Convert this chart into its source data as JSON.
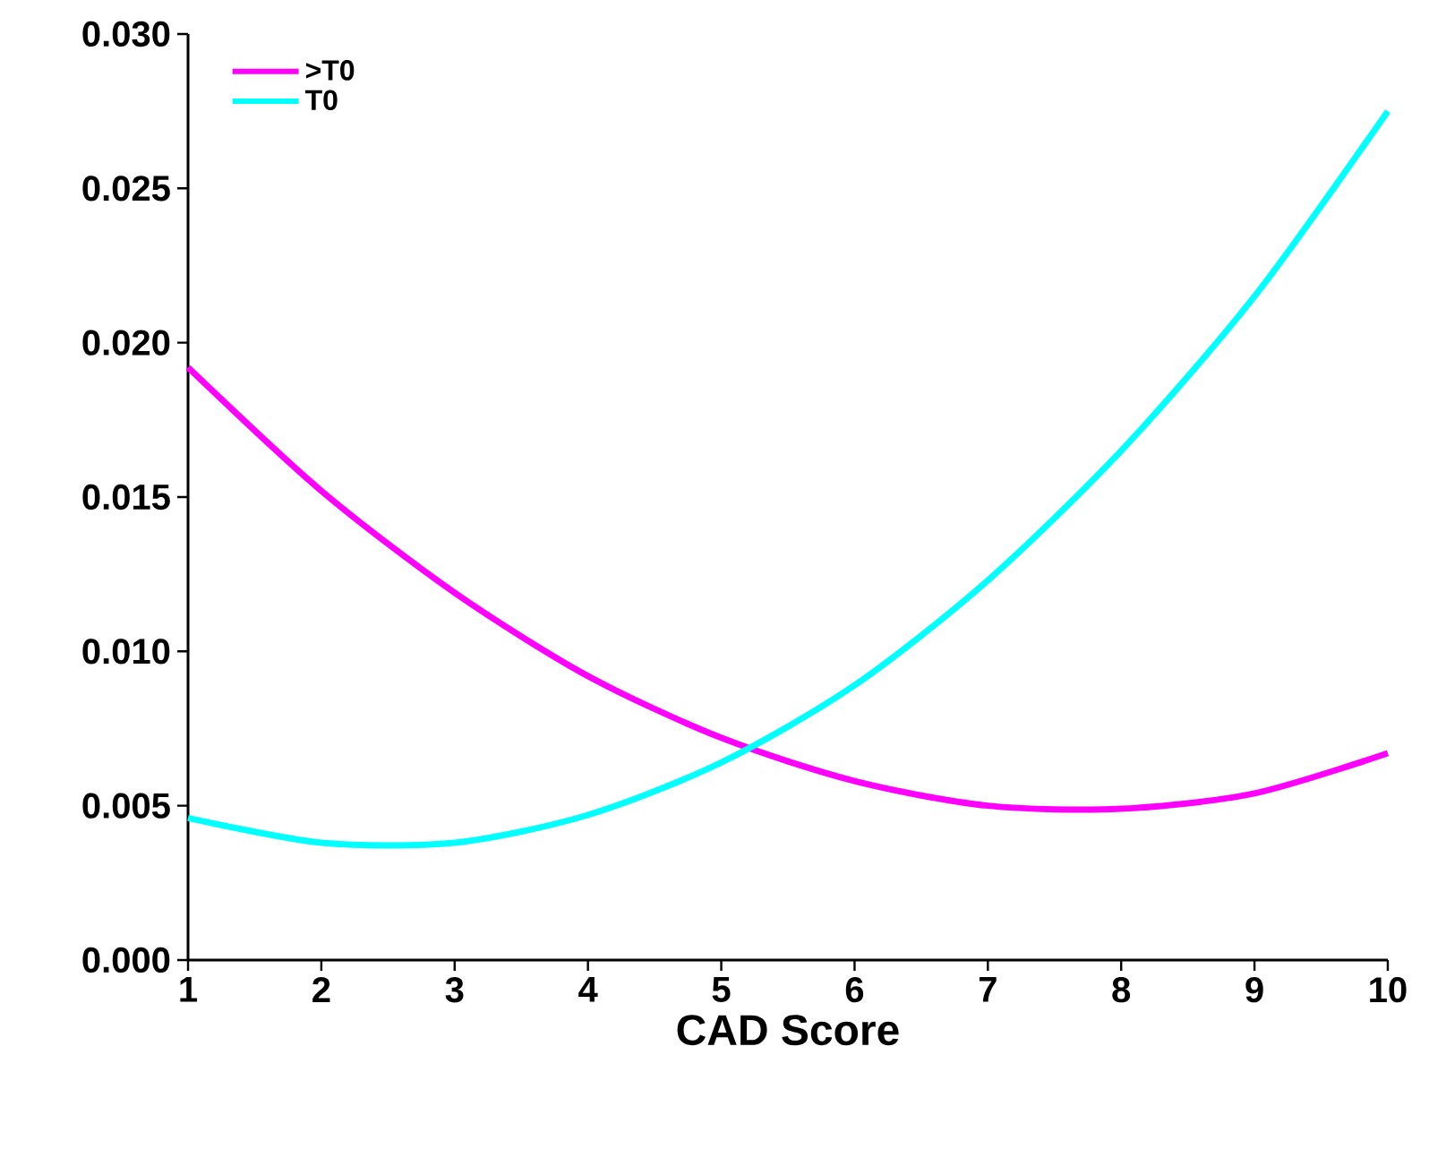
{
  "chart_data": {
    "type": "line",
    "xlabel": "CAD Score",
    "x": [
      1,
      2,
      3,
      4,
      5,
      6,
      7,
      8,
      9,
      10
    ],
    "series": [
      {
        "name": ">T0",
        "color": "#ff00ff",
        "values": [
          0.0192,
          0.0152,
          0.0119,
          0.0092,
          0.0072,
          0.0058,
          0.005,
          0.0049,
          0.0054,
          0.0067
        ]
      },
      {
        "name": "T0",
        "color": "#00ffff",
        "values": [
          0.0046,
          0.0038,
          0.0038,
          0.0047,
          0.0064,
          0.0089,
          0.0123,
          0.0165,
          0.0215,
          0.0275
        ]
      }
    ],
    "xlim": [
      1,
      10
    ],
    "xticks": [
      1,
      2,
      3,
      4,
      5,
      6,
      7,
      8,
      9,
      10
    ],
    "ylim": [
      0,
      0.03
    ],
    "yticks": [
      {
        "value": 0,
        "label": "0.000"
      },
      {
        "value": 0.005,
        "label": "0.005"
      },
      {
        "value": 0.01,
        "label": "0.010"
      },
      {
        "value": 0.015,
        "label": "0.015"
      },
      {
        "value": 0.02,
        "label": "0.020"
      },
      {
        "value": 0.025,
        "label": "0.025"
      },
      {
        "value": 0.03,
        "label": "0.030"
      }
    ],
    "legend": "top left",
    "marker": "none",
    "line_style": "solid",
    "grid": false
  }
}
